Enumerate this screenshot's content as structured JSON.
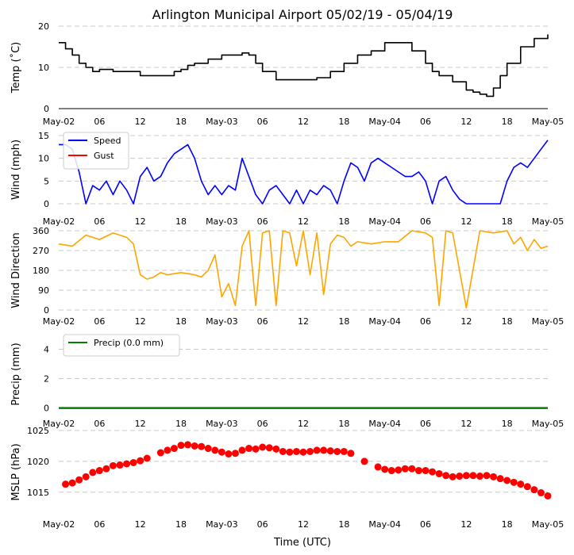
{
  "title": "Arlington Municipal Airport 05/02/19 - 05/04/19",
  "xlabel": "Time (UTC)",
  "x_tick_labels": [
    "May-02",
    "06",
    "12",
    "18",
    "May-03",
    "06",
    "12",
    "18",
    "May-04",
    "06",
    "12",
    "18",
    "May-05"
  ],
  "colors": {
    "temp": "#000000",
    "speed": "#0000ff",
    "gust": "#ff0000",
    "direction": "#ffa500",
    "precip": "#008000",
    "mslp": "#ff0000",
    "grid": "#c8c8c8"
  },
  "chart_data": [
    {
      "id": "temp",
      "type": "line",
      "ylabel": "Temp ($^\\circ$C)",
      "ylabel_display": "Temp (˚C)",
      "xlim": [
        0,
        72
      ],
      "ylim": [
        0,
        20
      ],
      "yticks": [
        0,
        10,
        20
      ],
      "grid": true,
      "series": [
        {
          "name": "Temp",
          "x": [
            0,
            1,
            2,
            3,
            4,
            5,
            6,
            8,
            10,
            12,
            14,
            17,
            18,
            19,
            20,
            22,
            24,
            26,
            27,
            28,
            29,
            30,
            32,
            34,
            36,
            38,
            40,
            42,
            44,
            46,
            48,
            49,
            50,
            52,
            54,
            55,
            56,
            58,
            60,
            61,
            62,
            63,
            64,
            65,
            66,
            68,
            70,
            72
          ],
          "y": [
            16,
            14.5,
            13,
            11,
            10,
            9,
            9.5,
            9,
            9,
            8,
            8,
            9,
            9.5,
            10.5,
            11,
            12,
            13,
            13,
            13.5,
            13,
            11,
            9,
            7,
            7,
            7,
            7.5,
            9,
            11,
            13,
            14,
            16,
            16,
            16,
            14,
            11,
            9,
            8,
            6.5,
            4.5,
            4,
            3.5,
            3,
            5,
            8,
            11,
            15,
            17,
            18
          ]
        }
      ]
    },
    {
      "id": "wind",
      "type": "line",
      "ylabel": "Wind (mph)",
      "xlim": [
        0,
        72
      ],
      "ylim": [
        0,
        15
      ],
      "yticks": [
        0,
        5,
        10,
        15
      ],
      "grid": true,
      "legend": [
        "Speed",
        "Gust"
      ],
      "legend_loc": "upper-left",
      "series": [
        {
          "name": "Speed",
          "x": [
            0,
            1,
            2,
            3,
            4,
            5,
            6,
            7,
            8,
            9,
            10,
            11,
            12,
            13,
            14,
            15,
            16,
            17,
            18,
            19,
            20,
            21,
            22,
            23,
            24,
            25,
            26,
            27,
            28,
            29,
            30,
            31,
            32,
            33,
            34,
            35,
            36,
            37,
            38,
            39,
            40,
            41,
            42,
            43,
            44,
            45,
            46,
            47,
            48,
            49,
            50,
            51,
            52,
            53,
            54,
            55,
            56,
            57,
            58,
            59,
            60,
            61,
            62,
            63,
            64,
            65,
            66,
            67,
            68,
            69,
            70,
            71,
            72
          ],
          "y": [
            13,
            13,
            12,
            7,
            0,
            4,
            3,
            5,
            2,
            5,
            3,
            0,
            6,
            8,
            5,
            6,
            9,
            11,
            12,
            13,
            10,
            5,
            2,
            4,
            2,
            4,
            3,
            10,
            6,
            2,
            0,
            3,
            4,
            2,
            0,
            3,
            0,
            3,
            2,
            4,
            3,
            0,
            5,
            9,
            8,
            5,
            9,
            10,
            9,
            8,
            7,
            6,
            6,
            7,
            5,
            0,
            5,
            6,
            3,
            1,
            0,
            0,
            0,
            0,
            0,
            0,
            5,
            8,
            9,
            8,
            10,
            12,
            14
          ]
        },
        {
          "name": "Gust",
          "x": [],
          "y": []
        }
      ]
    },
    {
      "id": "direction",
      "type": "line",
      "ylabel": "Wind Direction",
      "xlim": [
        0,
        72
      ],
      "ylim": [
        0,
        360
      ],
      "yticks": [
        0,
        90,
        180,
        270,
        360
      ],
      "grid": true,
      "series": [
        {
          "name": "Direction",
          "x": [
            0,
            2,
            4,
            6,
            8,
            10,
            11,
            12,
            13,
            14,
            15,
            16,
            18,
            20,
            21,
            22,
            23,
            24,
            25,
            26,
            27,
            28,
            29,
            30,
            31,
            32,
            33,
            34,
            35,
            36,
            37,
            38,
            39,
            40,
            41,
            42,
            43,
            44,
            46,
            48,
            50,
            52,
            54,
            55,
            56,
            57,
            58,
            60,
            62,
            64,
            66,
            67,
            68,
            69,
            70,
            71,
            72
          ],
          "y": [
            300,
            290,
            340,
            320,
            350,
            330,
            300,
            160,
            140,
            150,
            170,
            160,
            170,
            160,
            150,
            180,
            250,
            60,
            120,
            20,
            290,
            360,
            20,
            350,
            360,
            20,
            360,
            350,
            200,
            360,
            160,
            350,
            70,
            300,
            340,
            330,
            290,
            310,
            300,
            310,
            310,
            360,
            350,
            330,
            20,
            360,
            350,
            10,
            360,
            350,
            360,
            300,
            330,
            270,
            320,
            280,
            290
          ]
        }
      ]
    },
    {
      "id": "precip",
      "type": "line",
      "ylabel": "Precip (mm)",
      "xlim": [
        0,
        72
      ],
      "ylim": [
        -0.4,
        5
      ],
      "yticks": [
        0,
        2,
        4
      ],
      "grid": true,
      "legend": [
        "Precip (0.0 mm)"
      ],
      "legend_loc": "upper-left",
      "series": [
        {
          "name": "Precip (0.0 mm)",
          "x": [
            0,
            72
          ],
          "y": [
            0,
            0
          ]
        }
      ]
    },
    {
      "id": "mslp",
      "type": "scatter",
      "ylabel": "MSLP (hPa)",
      "xlim": [
        0,
        72
      ],
      "ylim": [
        1011.5,
        1025
      ],
      "yticks": [
        1015,
        1020,
        1025
      ],
      "grid": true,
      "series": [
        {
          "name": "MSLP",
          "x": [
            1,
            2,
            3,
            4,
            5,
            6,
            7,
            8,
            9,
            10,
            11,
            12,
            13,
            15,
            16,
            17,
            18,
            19,
            20,
            21,
            22,
            23,
            24,
            25,
            26,
            27,
            28,
            29,
            30,
            31,
            32,
            33,
            34,
            35,
            36,
            37,
            38,
            39,
            40,
            41,
            42,
            43,
            45,
            47,
            48,
            49,
            50,
            51,
            52,
            53,
            54,
            55,
            56,
            57,
            58,
            59,
            60,
            61,
            62,
            63,
            64,
            65,
            66,
            67,
            68,
            69,
            70,
            71,
            72
          ],
          "y": [
            1016.3,
            1016.5,
            1017,
            1017.5,
            1018.2,
            1018.5,
            1018.8,
            1019.3,
            1019.4,
            1019.6,
            1019.8,
            1020.1,
            1020.5,
            1021.4,
            1021.8,
            1022.1,
            1022.6,
            1022.7,
            1022.5,
            1022.4,
            1022.1,
            1021.8,
            1021.5,
            1021.2,
            1021.3,
            1021.8,
            1022.1,
            1022.0,
            1022.3,
            1022.2,
            1022.0,
            1021.6,
            1021.5,
            1021.6,
            1021.5,
            1021.6,
            1021.8,
            1021.8,
            1021.7,
            1021.6,
            1021.6,
            1021.3,
            1020.0,
            1019.1,
            1018.7,
            1018.5,
            1018.6,
            1018.8,
            1018.8,
            1018.5,
            1018.5,
            1018.3,
            1018.0,
            1017.7,
            1017.5,
            1017.6,
            1017.7,
            1017.7,
            1017.6,
            1017.7,
            1017.5,
            1017.2,
            1016.9,
            1016.6,
            1016.3,
            1015.9,
            1015.4,
            1014.9,
            1014.4
          ]
        }
      ]
    }
  ]
}
